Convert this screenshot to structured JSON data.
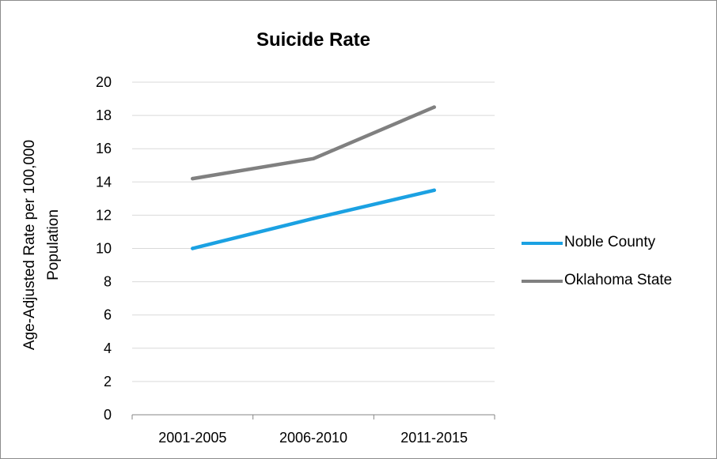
{
  "chart_data": {
    "type": "line",
    "title": "Suicide Rate",
    "ylabel": "Age-Adjusted Rate per 100,000 Population",
    "ylabel_lines": [
      "Age-Adjusted Rate per 100,000",
      "Population"
    ],
    "xlabel": "",
    "categories": [
      "2001-2005",
      "2006-2010",
      "2011-2015"
    ],
    "ylim": [
      0,
      20
    ],
    "yticks": [
      0,
      2,
      4,
      6,
      8,
      10,
      12,
      14,
      16,
      18,
      20
    ],
    "grid": true,
    "legend_position": "right",
    "series": [
      {
        "name": "Noble County",
        "values": [
          10.0,
          11.8,
          13.5
        ],
        "color": "#1ba1e2"
      },
      {
        "name": "Oklahoma State",
        "values": [
          14.2,
          15.4,
          18.5
        ],
        "color": "#808080"
      }
    ]
  }
}
